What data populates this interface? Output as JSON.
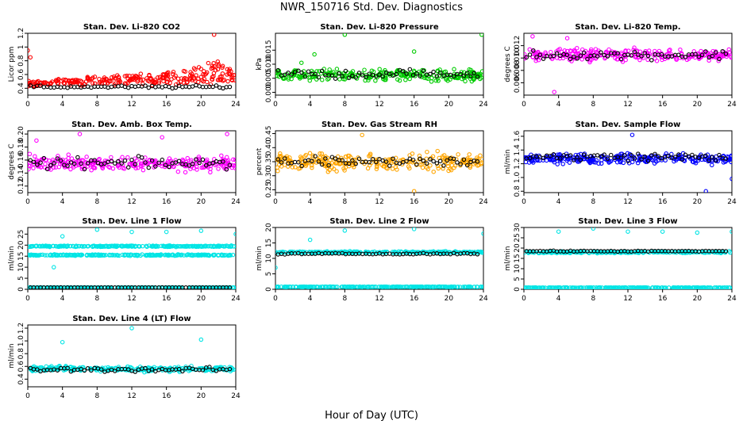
{
  "title": "NWR_150716  Std. Dev. Diagnostics",
  "xlabel": "Hour of Day (UTC)",
  "chart_data": [
    {
      "type": "scatter",
      "title": "Stan. Dev. Li-820 CO2",
      "ylabel": "Licor ppm",
      "xlim": [
        0,
        24
      ],
      "ylim": [
        0.3,
        1.2
      ],
      "xticks": [
        0,
        4,
        8,
        12,
        16,
        20,
        24
      ],
      "yticks": [
        0.4,
        0.6,
        0.8,
        1.0,
        1.2
      ],
      "ytick_labels": [
        "0.4",
        "0.6",
        "0.8",
        "1",
        "1.2"
      ],
      "colors": {
        "main": "#ff0000",
        "summary": "#000000"
      },
      "series": [
        {
          "role": "main",
          "points": [
            [
              0,
              0.95
            ],
            [
              0.3,
              0.85
            ],
            [
              2,
              0.48
            ],
            [
              6,
              0.45
            ],
            [
              10,
              0.45
            ],
            [
              14,
              0.5
            ],
            [
              16,
              0.6
            ],
            [
              18,
              0.65
            ],
            [
              20,
              0.68
            ],
            [
              21.5,
              1.18
            ],
            [
              22,
              0.75
            ],
            [
              23,
              0.6
            ]
          ],
          "band": {
            "y": 0.47,
            "spread": 0.06,
            "drift": [
              [
                16,
                0.15
              ],
              [
                22,
                0.35
              ],
              [
                24,
                0.1
              ]
            ]
          }
        },
        {
          "role": "summary",
          "y": 0.42,
          "spread": 0.03
        }
      ]
    },
    {
      "type": "scatter",
      "title": "Stan. Dev. Li-820 Pressure",
      "ylabel": "kPa",
      "xlim": [
        0,
        24
      ],
      "ylim": [
        -0.001,
        0.021
      ],
      "xticks": [
        0,
        4,
        8,
        12,
        16,
        20,
        24
      ],
      "yticks": [
        0.0,
        0.005,
        0.01,
        0.015
      ],
      "ytick_labels": [
        "0.000",
        "0.005",
        "0.010",
        "0.015"
      ],
      "colors": {
        "main": "#00cc00",
        "summary": "#000000"
      },
      "series": [
        {
          "role": "main",
          "points": [
            [
              8,
              0.0205
            ],
            [
              16,
              0.0145
            ],
            [
              23.8,
              0.0205
            ],
            [
              4.5,
              0.0135
            ],
            [
              3,
              0.0105
            ]
          ],
          "band": {
            "y": 0.006,
            "spread": 0.003
          }
        },
        {
          "role": "summary",
          "y": 0.0065,
          "spread": 0.0025
        }
      ]
    },
    {
      "type": "scatter",
      "title": "Stan. Dev. Li-820 Temp.",
      "ylabel": "degrees C",
      "xlim": [
        0,
        24
      ],
      "ylim": [
        0.004,
        0.014
      ],
      "xticks": [
        0,
        4,
        8,
        12,
        16,
        20,
        24
      ],
      "yticks": [
        0.006,
        0.008,
        0.01,
        0.012
      ],
      "ytick_labels": [
        "0.006",
        "0.008",
        "0.010",
        "0.012"
      ],
      "colors": {
        "main": "#ff00ff",
        "summary": "#000000"
      },
      "series": [
        {
          "role": "main",
          "points": [
            [
              1,
              0.0135
            ],
            [
              2,
              0.0105
            ],
            [
              3.5,
              0.0045
            ],
            [
              5,
              0.0132
            ]
          ],
          "band": {
            "y": 0.0105,
            "spread": 0.0013
          }
        },
        {
          "role": "summary",
          "y": 0.0105,
          "spread": 0.001
        }
      ]
    },
    {
      "type": "scatter",
      "title": "Stan. Dev. Amb. Box Temp.",
      "ylabel": "degrees C",
      "xlim": [
        0,
        24
      ],
      "ylim": [
        0.11,
        0.205
      ],
      "xticks": [
        0,
        4,
        8,
        12,
        16,
        20,
        24
      ],
      "yticks": [
        0.12,
        0.14,
        0.16,
        0.18,
        0.2
      ],
      "ytick_labels": [
        "0.12",
        "0.14",
        "0.16",
        "0.18",
        "0.20"
      ],
      "colors": {
        "main": "#ff00ff",
        "summary": "#000000"
      },
      "series": [
        {
          "role": "main",
          "points": [
            [
              1,
              0.19
            ],
            [
              6,
              0.2
            ],
            [
              15.5,
              0.195
            ],
            [
              23,
              0.2
            ]
          ],
          "band": {
            "y": 0.155,
            "spread": 0.018
          }
        },
        {
          "role": "summary",
          "y": 0.155,
          "spread": 0.012
        }
      ]
    },
    {
      "type": "scatter",
      "title": "Stan. Dev. Gas Stream RH",
      "ylabel": "percent",
      "xlim": [
        0,
        24
      ],
      "ylim": [
        0.24,
        0.46
      ],
      "xticks": [
        0,
        4,
        8,
        12,
        16,
        20,
        24
      ],
      "yticks": [
        0.25,
        0.3,
        0.35,
        0.4,
        0.45
      ],
      "ytick_labels": [
        "0.25",
        "0.30",
        "0.35",
        "0.40",
        "0.45"
      ],
      "colors": {
        "main": "#ffa500",
        "summary": "#000000"
      },
      "series": [
        {
          "role": "main",
          "points": [
            [
              16,
              0.245
            ],
            [
              10,
              0.445
            ]
          ],
          "band": {
            "y": 0.35,
            "spread": 0.045
          }
        },
        {
          "role": "summary",
          "y": 0.35,
          "spread": 0.03
        }
      ]
    },
    {
      "type": "scatter",
      "title": "Stan. Dev. Sample Flow",
      "ylabel": "ml/min",
      "xlim": [
        0,
        24
      ],
      "ylim": [
        0.78,
        1.68
      ],
      "xticks": [
        0,
        4,
        8,
        12,
        16,
        20,
        24
      ],
      "yticks": [
        0.8,
        1.0,
        1.2,
        1.4,
        1.6
      ],
      "ytick_labels": [
        "0.8",
        "1.0",
        "1.2",
        "1.4",
        "1.6"
      ],
      "colors": {
        "main": "#0000ff",
        "summary": "#000000"
      },
      "series": [
        {
          "role": "main",
          "points": [
            [
              21,
              0.8
            ],
            [
              24,
              0.98
            ],
            [
              12.5,
              1.62
            ]
          ],
          "band": {
            "y": 1.27,
            "spread": 0.1
          }
        },
        {
          "role": "summary",
          "y": 1.3,
          "spread": 0.08
        }
      ]
    },
    {
      "type": "scatter",
      "title": "Stan. Dev. Line 1 Flow",
      "ylabel": "ml/min",
      "xlim": [
        0,
        24
      ],
      "ylim": [
        0,
        28
      ],
      "xticks": [
        0,
        4,
        8,
        12,
        16,
        20,
        24
      ],
      "yticks": [
        0,
        5,
        10,
        15,
        20,
        25
      ],
      "ytick_labels": [
        "0",
        "5",
        "10",
        "15",
        "20",
        "25"
      ],
      "colors": {
        "main": "#00e5e5",
        "summary": "#000000"
      },
      "series": [
        {
          "role": "main",
          "points": [
            [
              4,
              24
            ],
            [
              8,
              27
            ],
            [
              12,
              26
            ],
            [
              16,
              26
            ],
            [
              20,
              26.5
            ],
            [
              24,
              25
            ],
            [
              3,
              10
            ]
          ],
          "bands": [
            {
              "y": 19.5,
              "spread": 0.4
            },
            {
              "y": 15.5,
              "spread": 0.4
            },
            {
              "y": 0.8,
              "spread": 0.1
            }
          ]
        },
        {
          "role": "summary",
          "y": 0.8,
          "spread": 0.05
        }
      ]
    },
    {
      "type": "scatter",
      "title": "Stan. Dev. Line 2 Flow",
      "ylabel": "ml/min",
      "xlim": [
        0,
        24
      ],
      "ylim": [
        0,
        20
      ],
      "xticks": [
        0,
        4,
        8,
        12,
        16,
        20,
        24
      ],
      "yticks": [
        0,
        5,
        10,
        15,
        20
      ],
      "ytick_labels": [
        "0",
        "5",
        "10",
        "15",
        "20"
      ],
      "colors": {
        "main": "#00e5e5",
        "summary": "#000000"
      },
      "series": [
        {
          "role": "main",
          "points": [
            [
              0,
              7
            ],
            [
              4,
              16
            ],
            [
              8,
              19
            ],
            [
              16,
              19.5
            ],
            [
              24,
              18
            ]
          ],
          "bands": [
            {
              "y": 12,
              "spread": 0.4
            },
            {
              "y": 0.8,
              "spread": 0.1
            }
          ]
        },
        {
          "role": "summary",
          "y": 11.5,
          "spread": 0.3
        }
      ]
    },
    {
      "type": "scatter",
      "title": "Stan. Dev. Line 3 Flow",
      "ylabel": "ml/min",
      "xlim": [
        0,
        24
      ],
      "ylim": [
        0,
        30
      ],
      "xticks": [
        0,
        4,
        8,
        12,
        16,
        20,
        24
      ],
      "yticks": [
        0,
        5,
        10,
        15,
        20,
        25,
        30
      ],
      "ytick_labels": [
        "0",
        "5",
        "10",
        "15",
        "20",
        "25",
        "30"
      ],
      "colors": {
        "main": "#00e5e5",
        "summary": "#000000"
      },
      "series": [
        {
          "role": "main",
          "points": [
            [
              4,
              28
            ],
            [
              8,
              29.5
            ],
            [
              12,
              28
            ],
            [
              16,
              28
            ],
            [
              20,
              27.5
            ],
            [
              24,
              28
            ]
          ],
          "bands": [
            {
              "y": 18,
              "spread": 0.6
            },
            {
              "y": 0.8,
              "spread": 0.1
            }
          ]
        },
        {
          "role": "summary",
          "y": 18.5,
          "spread": 0.3
        }
      ]
    },
    {
      "type": "scatter",
      "title": "Stan. Dev. Line 4 (LT) Flow",
      "ylabel": "ml/min",
      "xlim": [
        0,
        24
      ],
      "ylim": [
        0.28,
        1.25
      ],
      "xticks": [
        0,
        4,
        8,
        12,
        16,
        20,
        24
      ],
      "yticks": [
        0.4,
        0.6,
        0.8,
        1.0,
        1.2
      ],
      "ytick_labels": [
        "0.4",
        "0.6",
        "0.8",
        "1.0",
        "1.2"
      ],
      "colors": {
        "main": "#00e5e5",
        "summary": "#000000"
      },
      "series": [
        {
          "role": "main",
          "points": [
            [
              4,
              0.98
            ],
            [
              12,
              1.2
            ],
            [
              20,
              1.02
            ]
          ],
          "band": {
            "y": 0.56,
            "spread": 0.06
          }
        },
        {
          "role": "summary",
          "y": 0.55,
          "spread": 0.05
        }
      ]
    }
  ]
}
